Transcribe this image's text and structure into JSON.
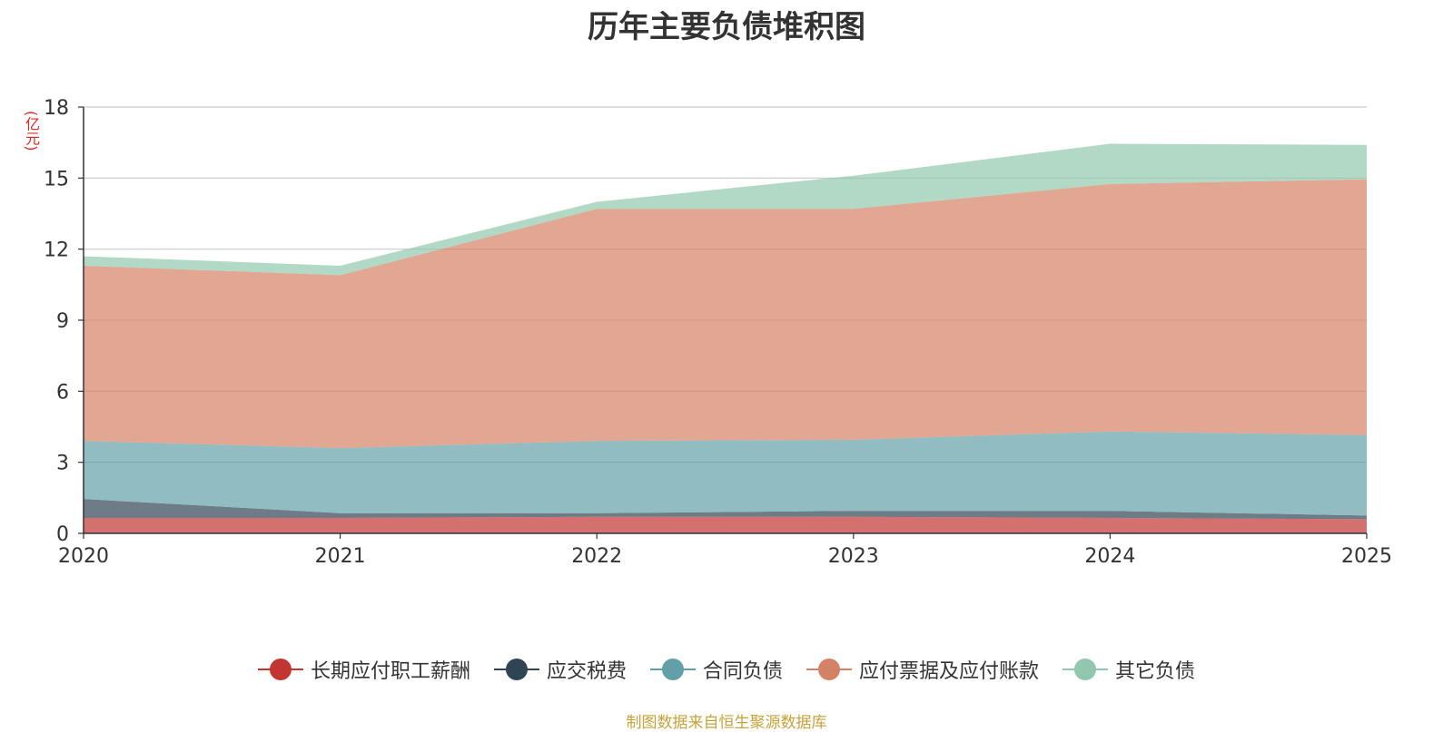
{
  "chart_data": {
    "type": "area",
    "stacked": true,
    "title": "历年主要负债堆积图",
    "unit_label": "(亿元)",
    "x": [
      "2020",
      "2021",
      "2022",
      "2023",
      "2024",
      "2025"
    ],
    "ylim": [
      0,
      18
    ],
    "yticks": [
      0,
      3,
      6,
      9,
      12,
      15,
      18
    ],
    "grid": true,
    "legend_position": "bottom",
    "series": [
      {
        "name": "长期应付职工薪酬",
        "color": "#c23531",
        "values": [
          0.65,
          0.65,
          0.7,
          0.7,
          0.65,
          0.6
        ]
      },
      {
        "name": "应交税费",
        "color": "#2f4554",
        "values": [
          0.8,
          0.2,
          0.15,
          0.25,
          0.3,
          0.15
        ]
      },
      {
        "name": "合同负债",
        "color": "#61a0a8",
        "values": [
          2.45,
          2.75,
          3.05,
          3.0,
          3.35,
          3.4
        ]
      },
      {
        "name": "应付票据及应付账款",
        "color": "#d48265",
        "values": [
          7.4,
          7.3,
          9.8,
          9.75,
          10.45,
          10.8
        ]
      },
      {
        "name": "其它负债",
        "color": "#91c7ae",
        "values": [
          0.4,
          0.4,
          0.3,
          1.4,
          1.7,
          1.45
        ]
      }
    ]
  },
  "source_note": "制图数据来自恒生聚源数据库"
}
